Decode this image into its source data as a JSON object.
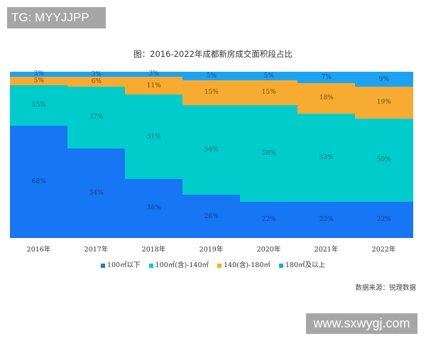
{
  "watermarks": {
    "top": "TG: MYYJJPP",
    "bottom": "www.sxwygj.com"
  },
  "source": "数据来源：锐理数据",
  "colors": {
    "s100_below": "#1676f3",
    "s100_140": "#00cccc",
    "s140_180": "#f7ab30",
    "s180_above": "#1ba3f2"
  },
  "chart_data": {
    "type": "bar",
    "stacked": true,
    "normalized": true,
    "title": "图：2016-2022年成都新房成交面积段占比",
    "xlabel": "",
    "ylabel": "",
    "ylim": [
      0,
      100
    ],
    "grid": false,
    "legend_position": "bottom",
    "categories": [
      "2016年",
      "2017年",
      "2018年",
      "2019年",
      "2020年",
      "2021年",
      "2022年"
    ],
    "series": [
      {
        "name": "100㎡以下",
        "values": [
          68,
          54,
          36,
          26,
          22,
          22,
          22
        ],
        "labels": [
          "68%",
          "54%",
          "36%",
          "26%",
          "22%",
          "22%",
          "22%"
        ]
      },
      {
        "name": "100㎡(含)-140㎡",
        "values": [
          25,
          37,
          51,
          54,
          58,
          53,
          50
        ],
        "labels": [
          "25%",
          "37%",
          "51%",
          "54%",
          "58%",
          "53%",
          "50%"
        ]
      },
      {
        "name": "140(含)-180㎡",
        "values": [
          5,
          6,
          11,
          15,
          15,
          18,
          19
        ],
        "labels": [
          "5%",
          "6%",
          "11%",
          "15%",
          "15%",
          "18%",
          "19%"
        ]
      },
      {
        "name": "180㎡及以上",
        "values": [
          3,
          3,
          3,
          5,
          5,
          7,
          9
        ],
        "labels": [
          "3%",
          "3%",
          "3%",
          "5%",
          "5%",
          "7%",
          "9%"
        ]
      }
    ]
  }
}
